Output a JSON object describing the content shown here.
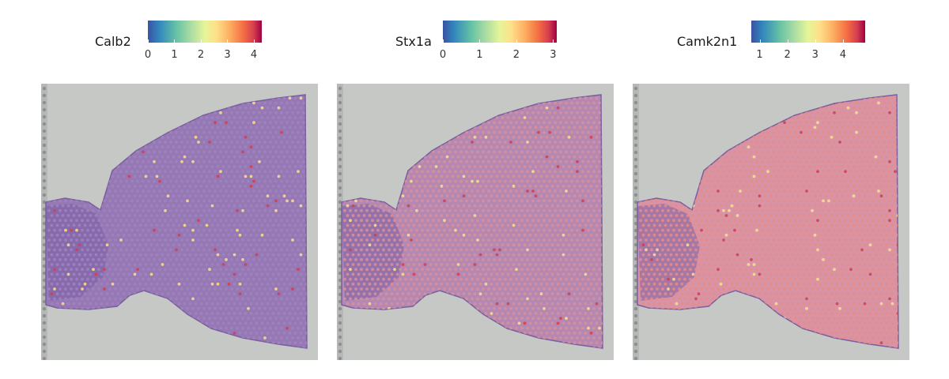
{
  "panels": [
    {
      "gene": "Calb2",
      "ticks": [
        "0",
        "1",
        "2",
        "3",
        "4"
      ],
      "tick_values": [
        0,
        1,
        2,
        3,
        4
      ],
      "range": [
        0,
        4.3
      ],
      "tissue_color": "#9678b4",
      "dot_color": "#9f84c0"
    },
    {
      "gene": "Stx1a",
      "ticks": [
        "0",
        "1",
        "2",
        "3"
      ],
      "tick_values": [
        0,
        1,
        2,
        3
      ],
      "range": [
        0,
        3.1
      ],
      "tissue_color": "#b488b0",
      "dot_color": "#d890a0"
    },
    {
      "gene": "Camk2n1",
      "ticks": [
        "1",
        "2",
        "3",
        "4"
      ],
      "tick_values": [
        1,
        2,
        3,
        4
      ],
      "range": [
        0.7,
        4.8
      ],
      "tissue_color": "#d894a4",
      "dot_color": "#e58c8c"
    }
  ],
  "colors": {
    "background": "#c6c8c6",
    "hot_spot": "#d53e4f",
    "low_spot": "#fee08b"
  }
}
